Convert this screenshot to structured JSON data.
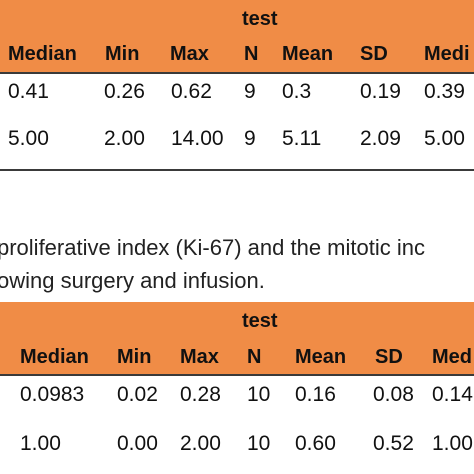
{
  "table1": {
    "group_label": "test",
    "headers": [
      "Median",
      "Min",
      "Max",
      "N",
      "Mean",
      "SD",
      "Medi"
    ],
    "rows": [
      [
        "0.41",
        "0.26",
        "0.62",
        "9",
        "0.3",
        "0.19",
        "0.39"
      ],
      [
        "5.00",
        "2.00",
        "14.00",
        "9",
        "5.11",
        "2.09",
        "5.00"
      ]
    ]
  },
  "caption": {
    "line1": "proliferative index (Ki-67) and the mitotic inc",
    "line2": "owing surgery and infusion."
  },
  "table2": {
    "group_label": "test",
    "headers": [
      "Median",
      "Min",
      "Max",
      "N",
      "Mean",
      "SD",
      "Med"
    ],
    "rows": [
      [
        "0.0983",
        "0.02",
        "0.28",
        "10",
        "0.16",
        "0.08",
        "0.14"
      ],
      [
        "1.00",
        "0.00",
        "2.00",
        "10",
        "0.60",
        "0.52",
        "1.00"
      ]
    ]
  },
  "colors": {
    "header_band": "#f08c46",
    "rule": "#3a3a3a",
    "text": "#111111"
  }
}
